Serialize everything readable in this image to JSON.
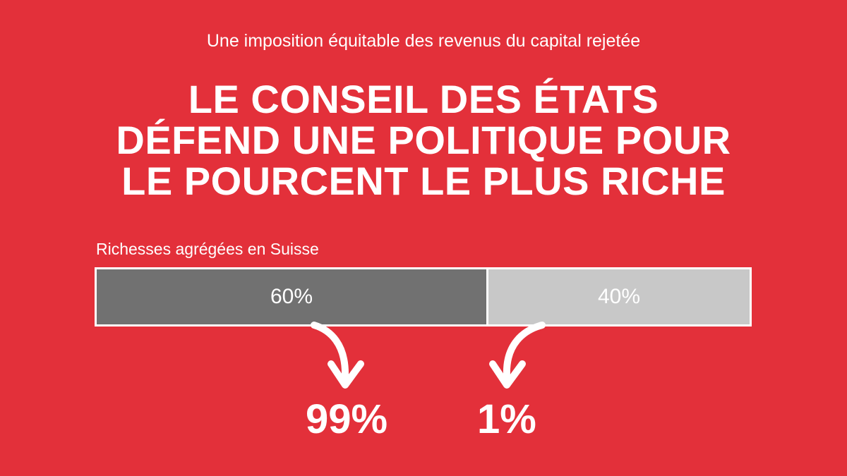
{
  "subtitle": "Une imposition équitable des revenus du capital rejetée",
  "headline": [
    "LE CONSEIL DES ÉTATS",
    "DÉFEND UNE POLITIQUE POUR",
    "LE POURCENT LE PLUS RICHE"
  ],
  "colors": {
    "background": "#e3303a",
    "segment_majority": "#717171",
    "segment_minority": "#c8c8c8",
    "text": "#ffffff"
  },
  "chart_data": {
    "type": "bar",
    "orientation": "horizontal-stacked",
    "title": "Richesses agrégées en Suisse",
    "segments": [
      {
        "label": "60%",
        "value": 60,
        "population_label": "99%",
        "population_value": 99
      },
      {
        "label": "40%",
        "value": 40,
        "population_label": "1%",
        "population_value": 1
      }
    ]
  }
}
